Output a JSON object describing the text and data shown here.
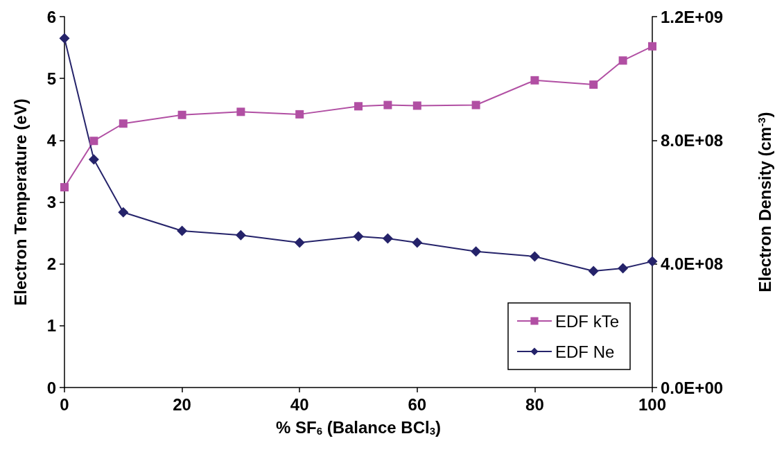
{
  "chart_data": {
    "type": "line",
    "xlabel": "% SF$_{6}$ (Balance BCl$_{3}$)",
    "ylabel": "Electron Temperature (eV)",
    "y2label": "Electron Density (cm$^{-3}$)",
    "x": [
      0,
      5,
      10,
      20,
      30,
      40,
      50,
      55,
      60,
      70,
      80,
      90,
      95,
      100
    ],
    "series": [
      {
        "name": "EDF kTe",
        "color": "#b14fa3",
        "marker": "square",
        "values": [
          3.24,
          3.99,
          4.27,
          4.41,
          4.46,
          4.42,
          4.55,
          4.57,
          4.56,
          4.57,
          4.97,
          4.9,
          5.29,
          5.52
        ]
      },
      {
        "name": "EDF Ne",
        "color": "#25236a",
        "marker": "diamond",
        "axis": "y2",
        "values": [
          1130000000.0,
          738000000.0,
          567000000.0,
          507000000.0,
          493000000.0,
          469000000.0,
          489000000.0,
          482000000.0,
          469000000.0,
          440000000.0,
          424000000.0,
          377000000.0,
          386000000.0,
          408000000.0
        ]
      }
    ],
    "xlim": [
      0,
      100
    ],
    "xticks": [
      0,
      20,
      40,
      60,
      80,
      100
    ],
    "ylim": [
      0,
      6
    ],
    "yticks": [
      0,
      1,
      2,
      3,
      4,
      5,
      6
    ],
    "y2lim": [
      0,
      1200000000.0
    ],
    "y2ticks": [
      {
        "value": 0,
        "label": "0.0E+00"
      },
      {
        "value": 400000000.0,
        "label": "4.0E+08"
      },
      {
        "value": 800000000.0,
        "label": "8.0E+08"
      },
      {
        "value": 1200000000.0,
        "label": "1.2E+09"
      }
    ],
    "grid": false,
    "legend": "bottom right",
    "line_style": "solid"
  }
}
